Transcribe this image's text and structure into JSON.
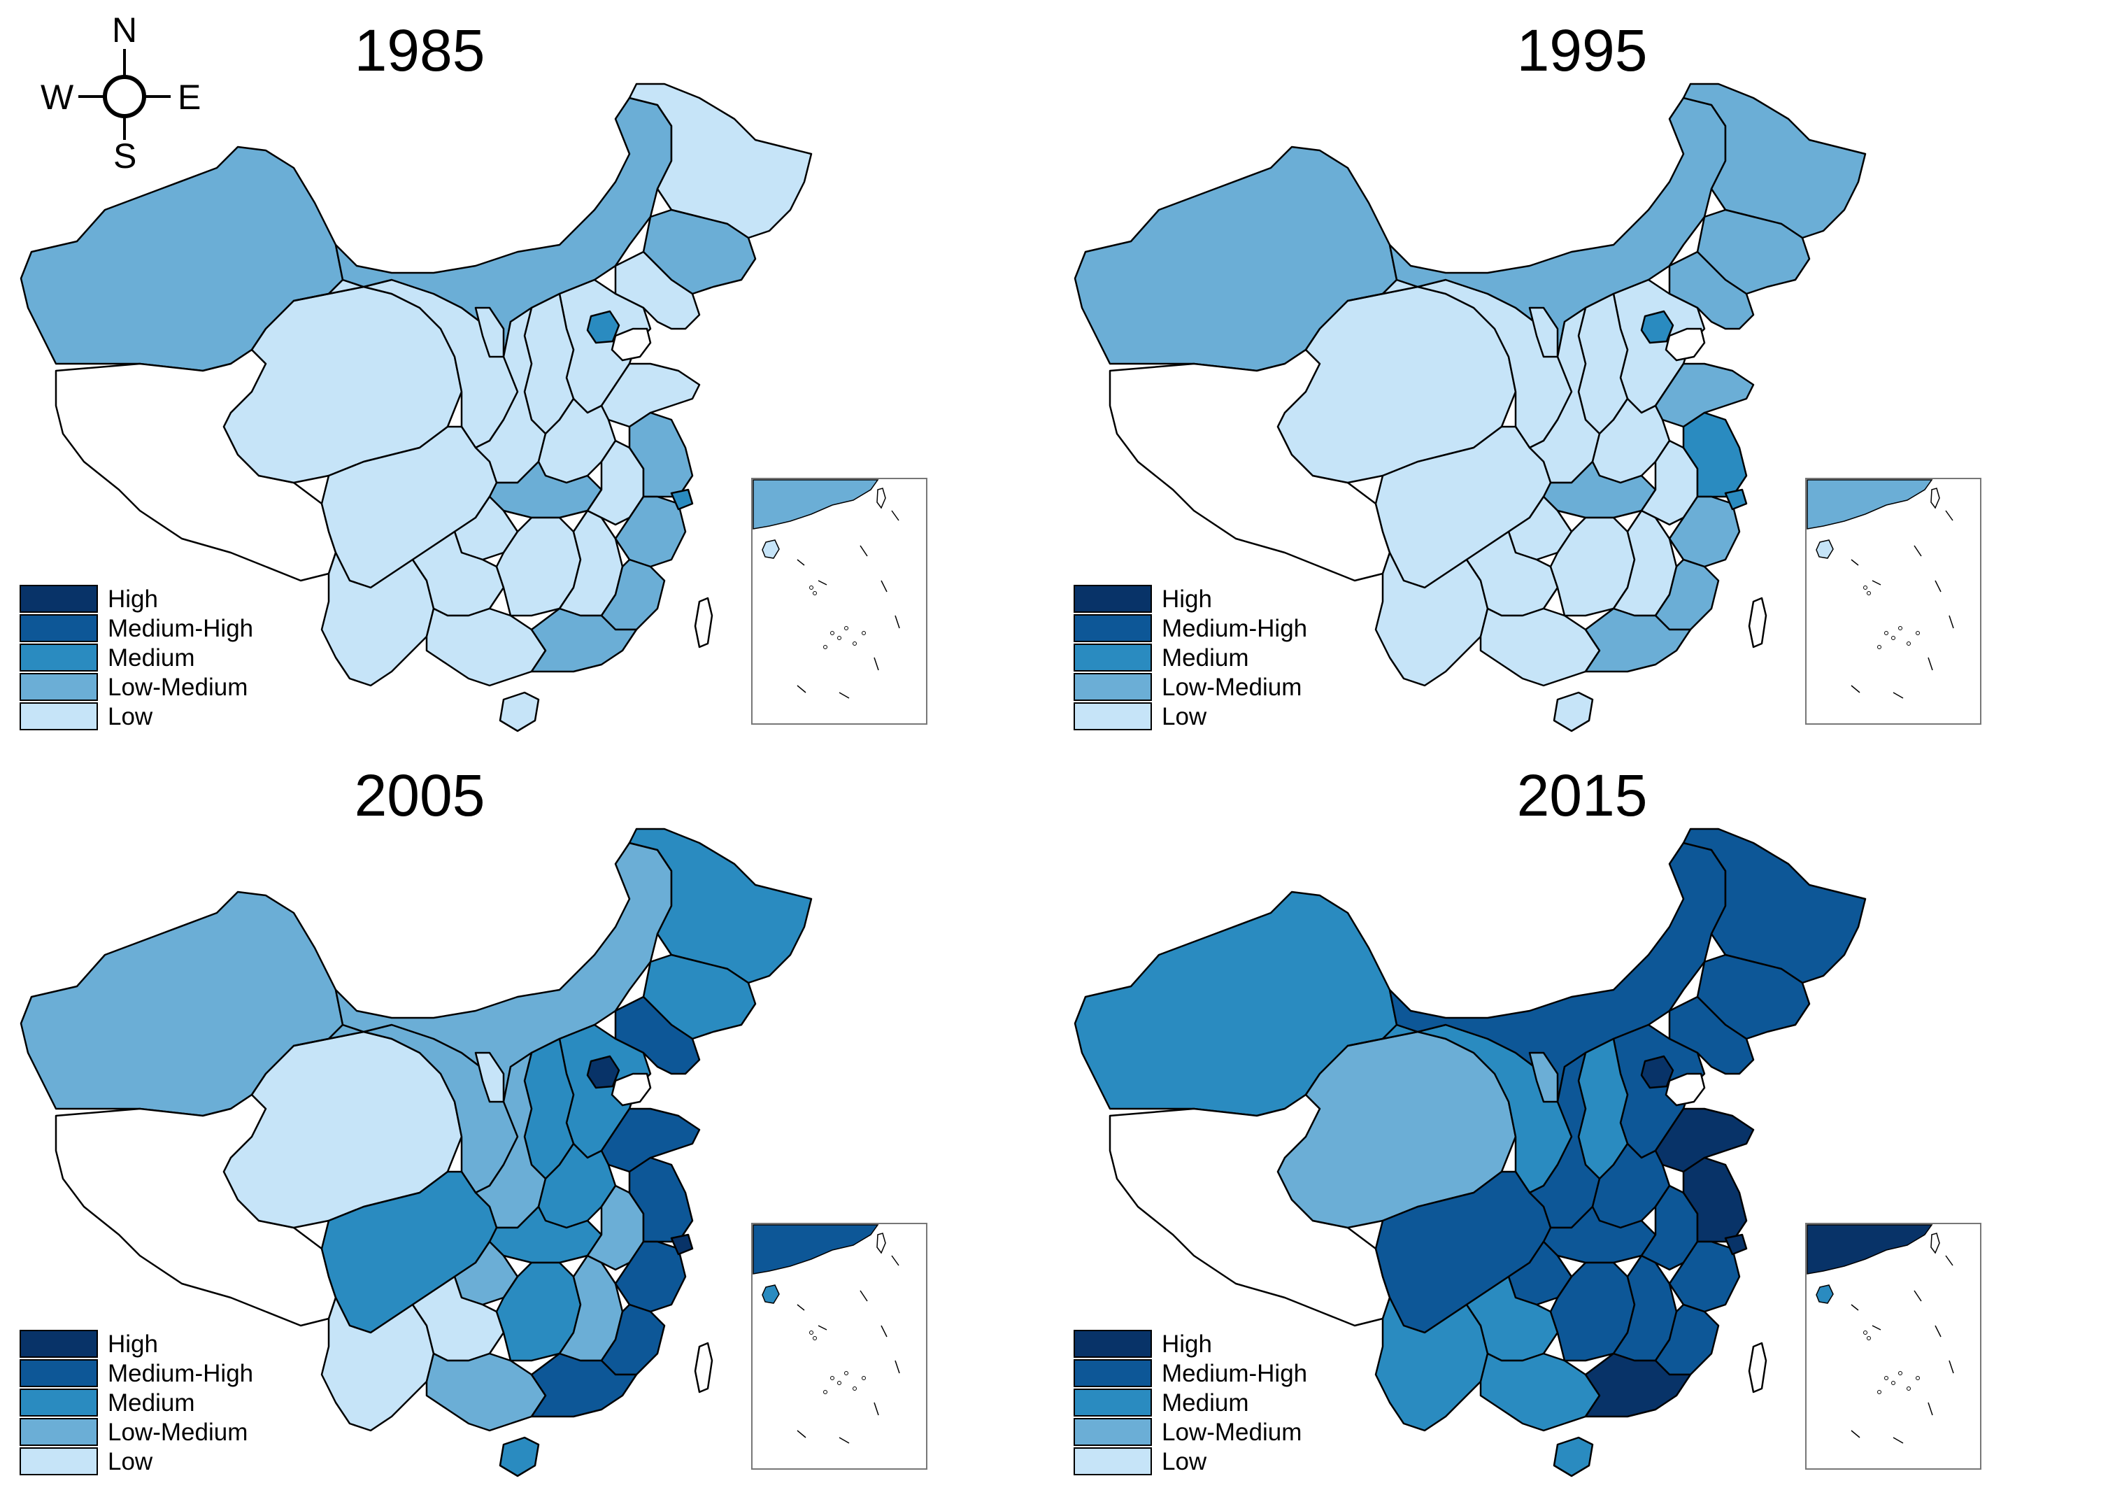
{
  "compass": {
    "north": "N",
    "south": "S",
    "east": "E",
    "west": "W"
  },
  "colors": {
    "none": "#ffffff",
    "Low": "#c6e4f8",
    "Low-Medium": "#6baed6",
    "Medium": "#2a8bc0",
    "Medium-High": "#0d5797",
    "High": "#083368",
    "border": "#000000"
  },
  "legend": {
    "items": [
      "High",
      "Medium-High",
      "Medium",
      "Low-Medium",
      "Low"
    ]
  },
  "panels": [
    {
      "year": "1985",
      "regions": {
        "xinjiang": "Low-Medium",
        "tibet": "none",
        "qinghai": "Low",
        "gansu": "Low",
        "inner_mongolia": "Low-Medium",
        "heilongjiang": "Low",
        "jilin": "Low-Medium",
        "liaoning": "Low",
        "beijing": "Medium",
        "hebei": "Low",
        "shandong": "Low",
        "shanxi": "Low",
        "shaanxi": "Low",
        "ningxia": "Low",
        "henan": "Low",
        "hubei": "Low-Medium",
        "sichuan": "Low",
        "chongqing": "Low",
        "yunnan": "Low",
        "guizhou": "Low",
        "guangxi": "Low",
        "hunan": "Low",
        "jiangxi": "Low",
        "anhui": "Low",
        "jiangsu": "Low-Medium",
        "shanghai": "Medium",
        "zhejiang": "Low-Medium",
        "fujian": "Low-Medium",
        "guangdong": "Low-Medium",
        "hainan": "Low",
        "taiwan": "none",
        "inset_sea": "Low-Medium",
        "inset_island": "Low"
      }
    },
    {
      "year": "1995",
      "regions": {
        "xinjiang": "Low-Medium",
        "tibet": "none",
        "qinghai": "Low",
        "gansu": "Low",
        "inner_mongolia": "Low-Medium",
        "heilongjiang": "Low-Medium",
        "jilin": "Low-Medium",
        "liaoning": "Low-Medium",
        "beijing": "Medium",
        "hebei": "Low",
        "shandong": "Low-Medium",
        "shanxi": "Low",
        "shaanxi": "Low",
        "ningxia": "Low",
        "henan": "Low",
        "hubei": "Low-Medium",
        "sichuan": "Low",
        "chongqing": "Low",
        "yunnan": "Low",
        "guizhou": "Low",
        "guangxi": "Low",
        "hunan": "Low",
        "jiangxi": "Low",
        "anhui": "Low",
        "jiangsu": "Medium",
        "shanghai": "Medium",
        "zhejiang": "Low-Medium",
        "fujian": "Low-Medium",
        "guangdong": "Low-Medium",
        "hainan": "Low",
        "taiwan": "none",
        "inset_sea": "Low-Medium",
        "inset_island": "Low"
      }
    },
    {
      "year": "2005",
      "regions": {
        "xinjiang": "Low-Medium",
        "tibet": "none",
        "qinghai": "Low",
        "gansu": "Low-Medium",
        "inner_mongolia": "Low-Medium",
        "heilongjiang": "Medium",
        "jilin": "Medium",
        "liaoning": "Medium-High",
        "beijing": "High",
        "hebei": "Medium",
        "shandong": "Medium-High",
        "shanxi": "Medium",
        "shaanxi": "Low-Medium",
        "ningxia": "Low",
        "henan": "Medium",
        "hubei": "Medium",
        "sichuan": "Medium",
        "chongqing": "Low-Medium",
        "yunnan": "Low",
        "guizhou": "Low",
        "guangxi": "Low-Medium",
        "hunan": "Medium",
        "jiangxi": "Low-Medium",
        "anhui": "Low-Medium",
        "jiangsu": "Medium-High",
        "shanghai": "High",
        "zhejiang": "Medium-High",
        "fujian": "Medium-High",
        "guangdong": "Medium-High",
        "hainan": "Medium",
        "taiwan": "none",
        "inset_sea": "Medium-High",
        "inset_island": "Medium"
      }
    },
    {
      "year": "2015",
      "regions": {
        "xinjiang": "Medium",
        "tibet": "none",
        "qinghai": "Low-Medium",
        "gansu": "Medium",
        "inner_mongolia": "Medium-High",
        "heilongjiang": "Medium-High",
        "jilin": "Medium-High",
        "liaoning": "Medium-High",
        "beijing": "High",
        "hebei": "Medium-High",
        "shandong": "High",
        "shanxi": "Medium",
        "shaanxi": "Medium-High",
        "ningxia": "Low-Medium",
        "henan": "Medium-High",
        "hubei": "Medium-High",
        "sichuan": "Medium-High",
        "chongqing": "Medium-High",
        "yunnan": "Medium",
        "guizhou": "Medium",
        "guangxi": "Medium",
        "hunan": "Medium-High",
        "jiangxi": "Medium-High",
        "anhui": "Medium-High",
        "jiangsu": "High",
        "shanghai": "High",
        "zhejiang": "Medium-High",
        "fujian": "Medium-High",
        "guangdong": "High",
        "hainan": "Medium",
        "taiwan": "none",
        "inset_sea": "High",
        "inset_island": "Medium"
      }
    }
  ]
}
